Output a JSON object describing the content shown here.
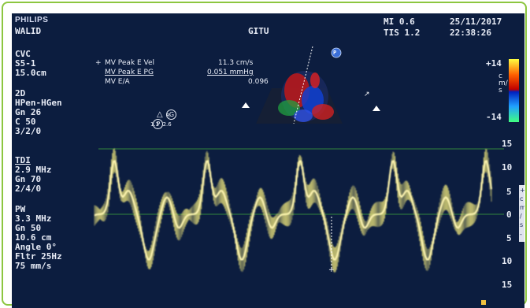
{
  "header": {
    "brand": "PHILIPS",
    "patient": "WALID",
    "operator": "GITU",
    "mi": "MI 0.6",
    "tis": "TIS 1.2",
    "date": "25/11/2017",
    "time": "22:38:26"
  },
  "probe": {
    "preset": "CVC",
    "transducer": "S5-1",
    "depth": "15.0cm"
  },
  "measurements": [
    {
      "label": "MV Peak E Vel",
      "value": "11.3 cm/s"
    },
    {
      "label": "MV Peak E PG",
      "value": "0.051 mmHg"
    },
    {
      "label": "MV E/A",
      "value": "0.096"
    }
  ],
  "twod": {
    "title": "2D",
    "mode": "HPen-HGen",
    "gain": "Gn 26",
    "compress": "C 50",
    "persist": "3/2/0",
    "marker_p": "P",
    "marker_g": "G",
    "marker_r": "R",
    "marker_values": "1.3  2.6"
  },
  "tdi": {
    "title": "TDI",
    "freq": "2.9 MHz",
    "gain": "Gn 70",
    "setting": "2/4/0"
  },
  "pw": {
    "title": "PW",
    "freq": "3.3 MHz",
    "gain": "Gn 50",
    "depth": "10.6 cm",
    "angle": "Angle 0°",
    "filter": "Fltr 25Hz",
    "speed": "75 mm/s"
  },
  "color_scale": {
    "top": "+14",
    "bottom": "-14",
    "unit": "cm/s"
  },
  "velocity_scale": {
    "ticks": [
      "15",
      "10",
      "5",
      "0",
      "5",
      "10",
      "15"
    ],
    "unit_chars": [
      "+",
      "c",
      "m",
      "/",
      "s",
      "-"
    ]
  },
  "sector_badge": "P",
  "colors": {
    "background": "#0c1d3f",
    "doppler": "#e8e07a",
    "baseline": "#3fa83f",
    "frame": "#8cc63f"
  }
}
